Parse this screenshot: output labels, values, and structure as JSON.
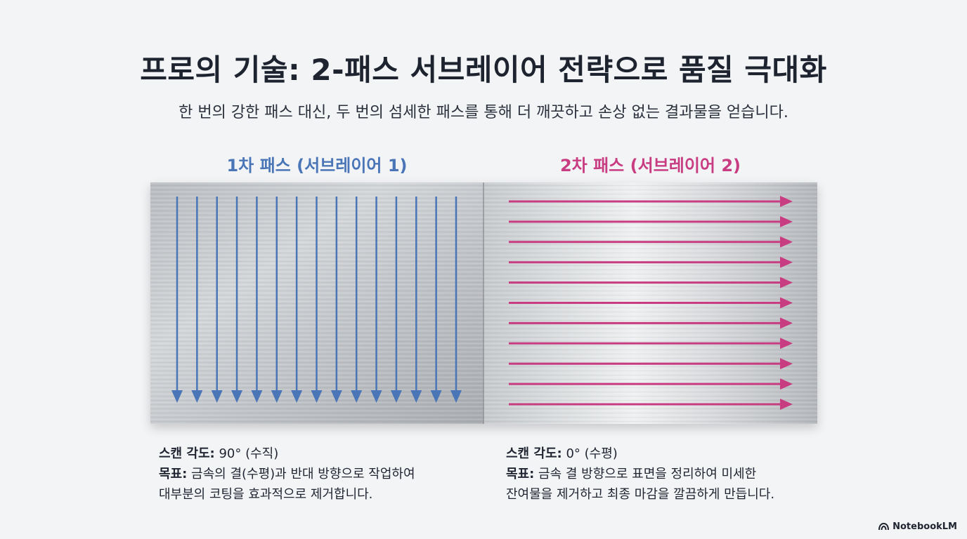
{
  "header": {
    "title": "프로의 기술: 2-패스 서브레이어 전략으로 품질 극대화",
    "subtitle": "한 번의 강한 패스 대신, 두 번의 섬세한 패스를 통해 더 깨끗하고 손상 없는 결과물을 얻습니다."
  },
  "pass1": {
    "label": "1차 패스 (서브레이어 1)",
    "color": "#4a76b8",
    "direction": "vertical-down",
    "arrow_count": 15,
    "angle_key": "스캔 각도:",
    "angle_value": " 90° (수직)",
    "goal_key": "목표:",
    "goal_line1": " 금속의 결(수평)과 반대 방향으로 작업하여",
    "goal_line2": "대부분의 코팅을 효과적으로 제거합니다."
  },
  "pass2": {
    "label": "2차 패스 (서브레이어 2)",
    "color": "#c83c82",
    "direction": "horizontal-right",
    "arrow_count": 11,
    "angle_key": "스캔 각도:",
    "angle_value": " 0° (수평)",
    "goal_key": "목표:",
    "goal_line1": " 금속 결 방향으로 표면을 정리하여 미세한",
    "goal_line2": "잔여물을 제거하고 최종 마감을 깔끔하게 만듭니다."
  },
  "brand": {
    "name": "NotebookLM"
  }
}
